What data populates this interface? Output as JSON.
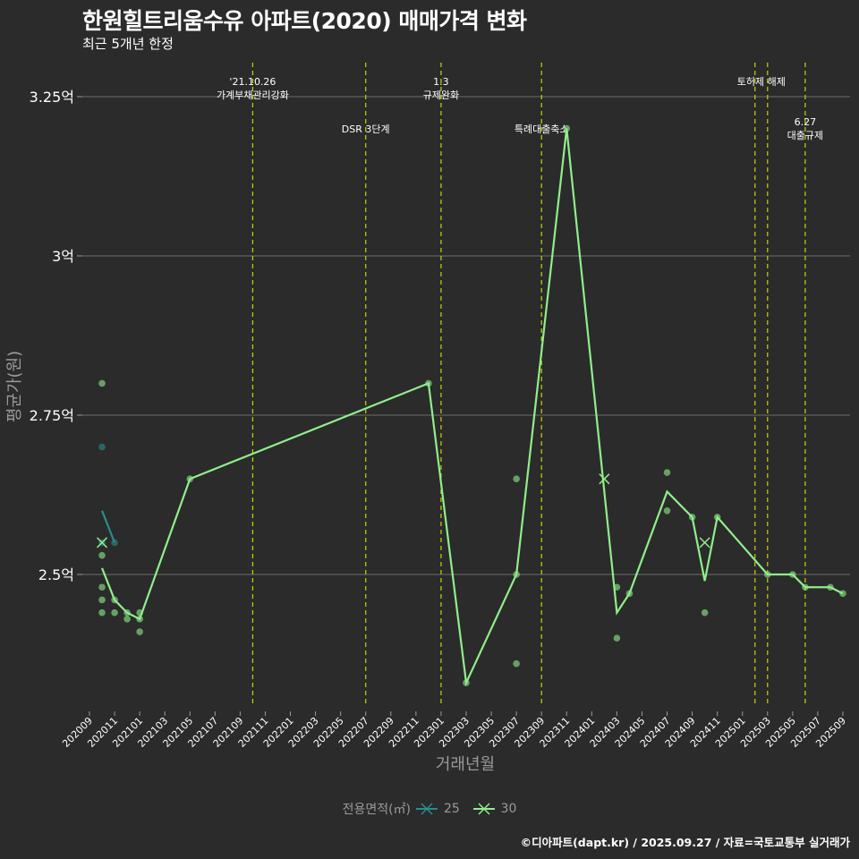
{
  "title": "한원힐트리움수유 아파트(2020) 매매가격 변화",
  "subtitle": "최근 5개년 한정",
  "footer": "©디아파트(dapt.kr) / 2025.09.27 / 자료=국토교통부 실거래가",
  "legend": {
    "title": "전용면적(㎡)",
    "items": [
      {
        "label": "25",
        "color": "#2a8c8c"
      },
      {
        "label": "30",
        "color": "#90ee8a"
      }
    ]
  },
  "chart_data": {
    "type": "line",
    "xlabel": "거래년월",
    "ylabel": "평균가(원)",
    "ylim": [
      2.3,
      3.33
    ],
    "yticks": [
      {
        "value": 2.5,
        "label": "2.5억"
      },
      {
        "value": 2.75,
        "label": "2.75억"
      },
      {
        "value": 3.0,
        "label": "3억"
      },
      {
        "value": 3.25,
        "label": "3.25억"
      }
    ],
    "x_start": "202009",
    "x_end": "202509",
    "x_tick_step_months": 2,
    "policy_lines": [
      {
        "month": "202110",
        "label": "'21.10.26\n가계부채관리강화",
        "label_level": "high"
      },
      {
        "month": "202207",
        "label": "DSR 3단계",
        "label_level": "low"
      },
      {
        "month": "202301",
        "label": "1.3\n규제완화",
        "label_level": "high"
      },
      {
        "month": "202309",
        "label": "특례대출축소",
        "label_level": "low"
      },
      {
        "month": "202502",
        "label": "",
        "label_level": "high"
      },
      {
        "month": "202503",
        "label": "토허제 해제",
        "label_level": "high",
        "label_anchor": "202502.5"
      },
      {
        "month": "202506",
        "label": "6.27\n대출규제",
        "label_level": "mid"
      }
    ],
    "series": [
      {
        "name": "25",
        "color": "#2a8c8c",
        "line": [
          [
            "202010",
            2.6
          ],
          [
            "202011",
            2.55
          ]
        ],
        "points": [
          [
            "202010",
            2.7
          ],
          [
            "202010",
            2.55
          ],
          [
            "202011",
            2.55
          ]
        ],
        "crosses": [
          [
            "202010",
            2.55
          ]
        ]
      },
      {
        "name": "30",
        "color": "#90ee8a",
        "line": [
          [
            "202010",
            2.51
          ],
          [
            "202011",
            2.46
          ],
          [
            "202012",
            2.44
          ],
          [
            "202101",
            2.43
          ],
          [
            "202105",
            2.65
          ],
          [
            "202212",
            2.8
          ],
          [
            "202303",
            2.33
          ],
          [
            "202307",
            2.5
          ],
          [
            "202311",
            3.2
          ],
          [
            "202403",
            2.44
          ],
          [
            "202404",
            2.47
          ],
          [
            "202407",
            2.63
          ],
          [
            "202409",
            2.59
          ],
          [
            "202410",
            2.49
          ],
          [
            "202411",
            2.59
          ],
          [
            "202503",
            2.5
          ],
          [
            "202505",
            2.5
          ],
          [
            "202506",
            2.48
          ],
          [
            "202508",
            2.48
          ],
          [
            "202509",
            2.47
          ]
        ],
        "points": [
          [
            "202010",
            2.8
          ],
          [
            "202010",
            2.53
          ],
          [
            "202010",
            2.48
          ],
          [
            "202010",
            2.46
          ],
          [
            "202010",
            2.44
          ],
          [
            "202011",
            2.46
          ],
          [
            "202011",
            2.44
          ],
          [
            "202012",
            2.44
          ],
          [
            "202012",
            2.43
          ],
          [
            "202101",
            2.44
          ],
          [
            "202101",
            2.43
          ],
          [
            "202101",
            2.41
          ],
          [
            "202105",
            2.65
          ],
          [
            "202212",
            2.8
          ],
          [
            "202303",
            2.33
          ],
          [
            "202307",
            2.65
          ],
          [
            "202307",
            2.5
          ],
          [
            "202307",
            2.36
          ],
          [
            "202311",
            3.2
          ],
          [
            "202403",
            2.48
          ],
          [
            "202403",
            2.4
          ],
          [
            "202404",
            2.47
          ],
          [
            "202407",
            2.66
          ],
          [
            "202407",
            2.6
          ],
          [
            "202409",
            2.59
          ],
          [
            "202410",
            2.44
          ],
          [
            "202411",
            2.59
          ],
          [
            "202503",
            2.5
          ],
          [
            "202505",
            2.5
          ],
          [
            "202506",
            2.48
          ],
          [
            "202508",
            2.48
          ],
          [
            "202509",
            2.47
          ]
        ],
        "crosses": [
          [
            "202010",
            2.55
          ],
          [
            "202402",
            2.65
          ],
          [
            "202410",
            2.55
          ]
        ]
      }
    ]
  }
}
